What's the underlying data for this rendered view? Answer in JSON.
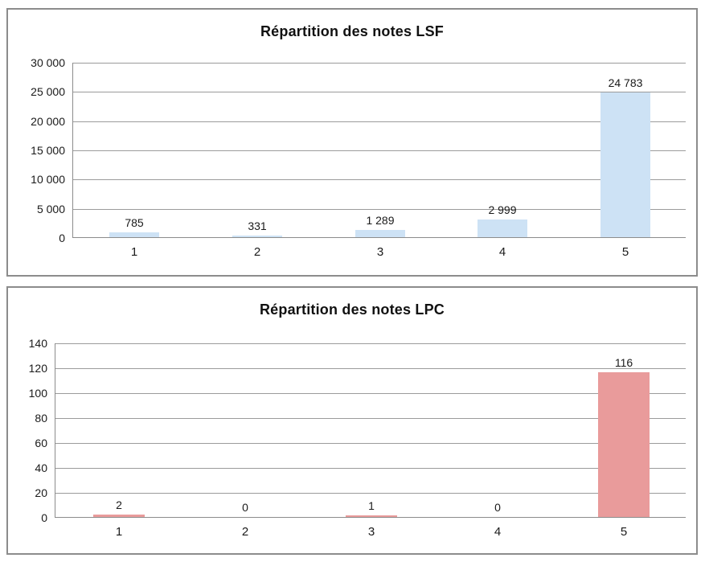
{
  "window": {
    "background": "#ffffff"
  },
  "chart_data": [
    {
      "type": "bar",
      "title": "Répartition des notes LSF",
      "categories": [
        "1",
        "2",
        "3",
        "4",
        "5"
      ],
      "values": [
        785,
        331,
        1289,
        2999,
        24783
      ],
      "value_labels": [
        "785",
        "331",
        "1 289",
        "2 999",
        "24 783"
      ],
      "xlabel": "",
      "ylabel": "",
      "ylim": [
        0,
        30000
      ],
      "y_ticks": [
        0,
        5000,
        10000,
        15000,
        20000,
        25000,
        30000
      ],
      "y_tick_labels": [
        "0",
        "5 000",
        "10 000",
        "15 000",
        "20 000",
        "25 000",
        "30 000"
      ],
      "grid": true,
      "legend": "none",
      "bar_color": "#cde2f5"
    },
    {
      "type": "bar",
      "title": "Répartition des notes LPC",
      "categories": [
        "1",
        "2",
        "3",
        "4",
        "5"
      ],
      "values": [
        2,
        0,
        1,
        0,
        116
      ],
      "value_labels": [
        "2",
        "0",
        "1",
        "0",
        "116"
      ],
      "xlabel": "",
      "ylabel": "",
      "ylim": [
        0,
        140
      ],
      "y_ticks": [
        0,
        20,
        40,
        60,
        80,
        100,
        120,
        140
      ],
      "y_tick_labels": [
        "0",
        "20",
        "40",
        "60",
        "80",
        "100",
        "120",
        "140"
      ],
      "grid": true,
      "legend": "none",
      "bar_color": "#e99b9b"
    }
  ]
}
